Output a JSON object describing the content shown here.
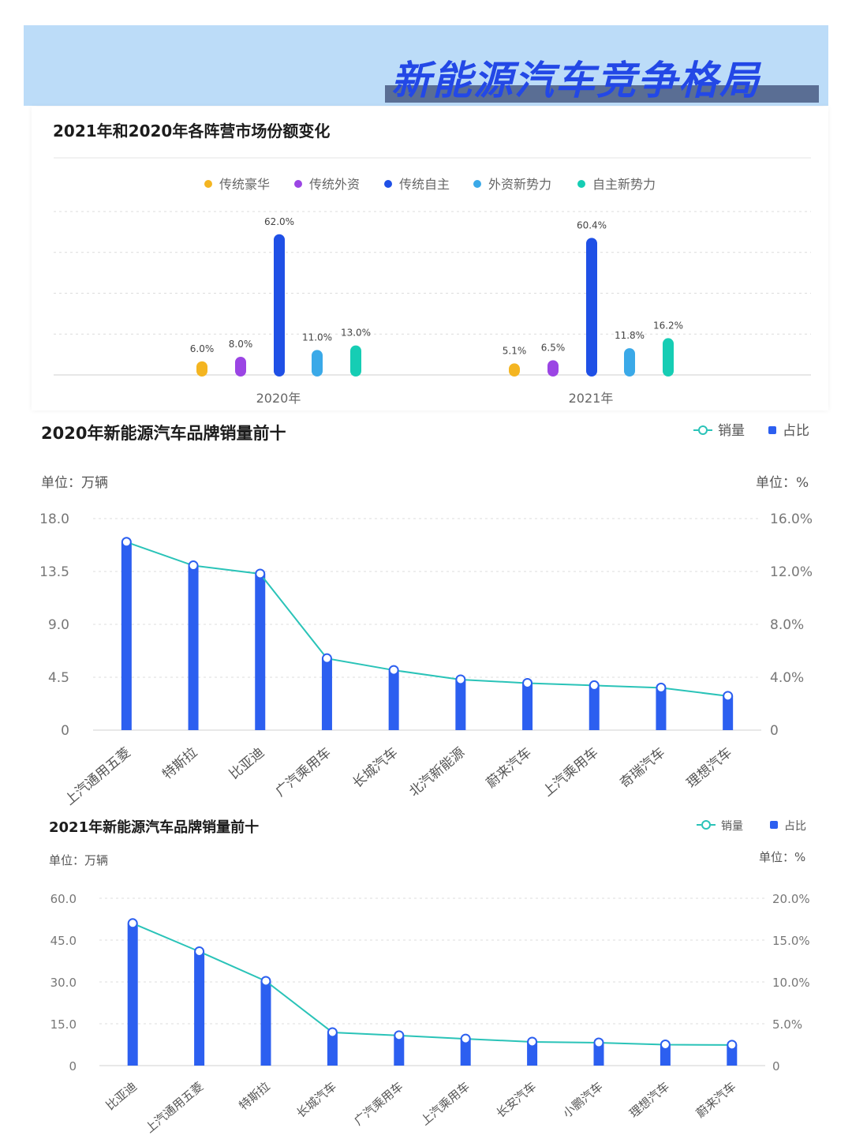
{
  "header": {
    "title": "新能源汽车竞争格局"
  },
  "colors": {
    "gold": "#f4b521",
    "purple": "#9b45e4",
    "blue": "#1f50e6",
    "sky": "#3aa9e8",
    "teal": "#16cdb4",
    "bar": "#2c5ff0",
    "line": "#2ac3b8"
  },
  "chart_data": [
    {
      "type": "bar",
      "title": "2021年和2020年各阵营市场份额变化",
      "categories": [
        "2020年",
        "2021年"
      ],
      "series": [
        {
          "name": "传统豪华",
          "values": [
            6.0,
            5.1
          ],
          "labels": [
            "6.0%",
            "5.1%"
          ],
          "color": "#f4b521"
        },
        {
          "name": "传统外资",
          "values": [
            8.0,
            6.5
          ],
          "labels": [
            "8.0%",
            "6.5%"
          ],
          "color": "#9b45e4"
        },
        {
          "name": "传统自主",
          "values": [
            62.0,
            60.4
          ],
          "labels": [
            "62.0%",
            "60.4%"
          ],
          "color": "#1f50e6"
        },
        {
          "name": "外资新势力",
          "values": [
            11.0,
            11.8
          ],
          "labels": [
            "11.0%",
            "11.8%"
          ],
          "color": "#3aa9e8"
        },
        {
          "name": "自主新势力",
          "values": [
            13.0,
            16.2
          ],
          "labels": [
            "13.0%",
            "16.2%"
          ],
          "color": "#16cdb4"
        }
      ],
      "ylim": [
        0,
        72
      ],
      "legend": "top",
      "grid": true
    },
    {
      "type": "bar+line",
      "title": "2020年新能源汽车品牌销量前十",
      "legend": {
        "line": "销量",
        "bar": "占比"
      },
      "left_unit": "单位：万辆",
      "right_unit": "单位：%",
      "categories": [
        "上汽通用五菱",
        "特斯拉",
        "比亚迪",
        "广汽乘用车",
        "长城汽车",
        "北汽新能源",
        "蔚来汽车",
        "上汽乘用车",
        "奇瑞汽车",
        "理想汽车"
      ],
      "left_ticks": [
        "18.0",
        "13.5",
        "9.0",
        "4.5",
        "0"
      ],
      "right_ticks": [
        "16.0%",
        "12.0%",
        "8.0%",
        "4.0%",
        "0"
      ],
      "ylim_left": [
        0,
        18
      ],
      "ylim_right": [
        0,
        16
      ],
      "sales": [
        16.0,
        14.0,
        13.3,
        6.1,
        5.1,
        4.3,
        4.0,
        3.8,
        3.6,
        2.9
      ],
      "share": [
        14.2,
        12.4,
        11.8,
        5.4,
        4.5,
        3.8,
        3.6,
        3.4,
        3.2,
        2.6
      ]
    },
    {
      "type": "bar+line",
      "title": "2021年新能源汽车品牌销量前十",
      "legend": {
        "line": "销量",
        "bar": "占比"
      },
      "left_unit": "单位：万辆",
      "right_unit": "单位：%",
      "categories": [
        "比亚迪",
        "上汽通用五菱",
        "特斯拉",
        "长城汽车",
        "广汽乘用车",
        "上汽乘用车",
        "长安汽车",
        "小鹏汽车",
        "理想汽车",
        "蔚来汽车"
      ],
      "left_ticks": [
        "60.0",
        "45.0",
        "30.0",
        "15.0",
        "0"
      ],
      "right_ticks": [
        "20.0%",
        "15.0%",
        "10.0%",
        "5.0%",
        "0"
      ],
      "ylim_left": [
        0,
        60
      ],
      "ylim_right": [
        0,
        20
      ],
      "sales": [
        51.0,
        40.9,
        30.3,
        11.9,
        10.8,
        9.6,
        8.5,
        8.2,
        7.5,
        7.4
      ],
      "share": [
        17.0,
        13.6,
        10.1,
        4.0,
        3.6,
        3.2,
        2.8,
        2.7,
        2.5,
        2.5
      ]
    }
  ]
}
